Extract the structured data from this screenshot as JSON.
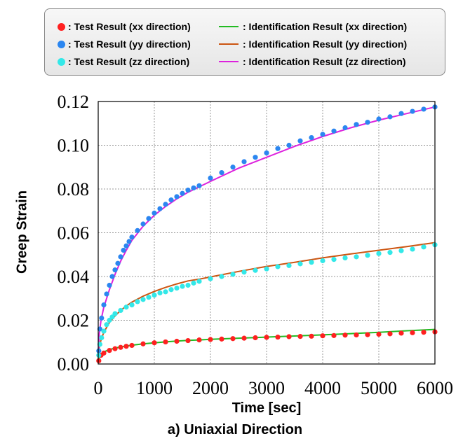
{
  "legend": {
    "items": [
      {
        "label": ": Test Result (xx direction)",
        "color": "#ff2020",
        "kind": "marker"
      },
      {
        "label": ": Test Result (yy direction)",
        "color": "#2b86f0",
        "kind": "marker"
      },
      {
        "label": ": Test Result (zz direction)",
        "color": "#33e8e8",
        "kind": "marker"
      },
      {
        "label": ": Identification Result (xx direction)",
        "color": "#22bb22",
        "kind": "line"
      },
      {
        "label": ": Identification Result (yy direction)",
        "color": "#cc5511",
        "kind": "line"
      },
      {
        "label": ": Identification Result (zz direction)",
        "color": "#dd22dd",
        "kind": "line"
      }
    ]
  },
  "caption": "a) Uniaxial Direction",
  "chart_data": {
    "type": "scatter",
    "xlabel": "Time [sec]",
    "ylabel": "Creep Strain",
    "xlim": [
      0,
      6000
    ],
    "ylim": [
      0,
      0.12
    ],
    "xticks": [
      "0",
      "1000",
      "2000",
      "3000",
      "4000",
      "5000",
      "6000"
    ],
    "yticks": [
      "0.00",
      "0.02",
      "0.04",
      "0.06",
      "0.08",
      "0.10",
      "0.12"
    ],
    "grid": true,
    "legend_position": "top",
    "series": [
      {
        "name": "Test Result (xx direction)",
        "kind": "markers",
        "color": "#ff2020",
        "x": [
          10,
          50,
          100,
          200,
          300,
          400,
          500,
          600,
          800,
          1000,
          1200,
          1400,
          1600,
          1800,
          2000,
          2200,
          2400,
          2600,
          2800,
          3000,
          3200,
          3400,
          3600,
          3800,
          4000,
          4200,
          4400,
          4600,
          4800,
          5000,
          5200,
          5400,
          5600,
          5800,
          6000
        ],
        "y": [
          0.0015,
          0.004,
          0.005,
          0.0062,
          0.007,
          0.0076,
          0.0081,
          0.0085,
          0.0092,
          0.0097,
          0.0101,
          0.0104,
          0.0107,
          0.011,
          0.0112,
          0.0114,
          0.0116,
          0.0118,
          0.012,
          0.0122,
          0.0123,
          0.0125,
          0.0126,
          0.0127,
          0.0129,
          0.013,
          0.0132,
          0.0133,
          0.0134,
          0.0136,
          0.0138,
          0.0141,
          0.0143,
          0.0145,
          0.0147
        ]
      },
      {
        "name": "Test Result (yy direction)",
        "kind": "markers",
        "color": "#2b86f0",
        "x": [
          10,
          30,
          60,
          100,
          150,
          200,
          250,
          300,
          350,
          400,
          450,
          500,
          550,
          600,
          700,
          800,
          900,
          1000,
          1100,
          1200,
          1300,
          1400,
          1500,
          1600,
          1700,
          1800,
          2000,
          2200,
          2400,
          2600,
          2800,
          3000,
          3200,
          3400,
          3600,
          3800,
          4000,
          4200,
          4400,
          4600,
          4800,
          5000,
          5200,
          5400,
          5600,
          5800,
          6000
        ],
        "y": [
          0.006,
          0.016,
          0.021,
          0.027,
          0.032,
          0.036,
          0.04,
          0.043,
          0.046,
          0.049,
          0.052,
          0.054,
          0.056,
          0.058,
          0.061,
          0.064,
          0.0665,
          0.069,
          0.071,
          0.073,
          0.075,
          0.0765,
          0.078,
          0.0795,
          0.0805,
          0.0815,
          0.085,
          0.0875,
          0.09,
          0.0925,
          0.0945,
          0.0965,
          0.0985,
          0.1,
          0.102,
          0.1035,
          0.105,
          0.1065,
          0.108,
          0.1095,
          0.1105,
          0.112,
          0.113,
          0.1145,
          0.1155,
          0.1165,
          0.1175
        ]
      },
      {
        "name": "Test Result (zz direction)",
        "kind": "markers",
        "color": "#33e8e8",
        "x": [
          10,
          30,
          60,
          100,
          150,
          200,
          250,
          300,
          400,
          500,
          600,
          700,
          800,
          900,
          1000,
          1100,
          1200,
          1300,
          1400,
          1500,
          1600,
          1700,
          1800,
          2000,
          2200,
          2400,
          2600,
          2800,
          3000,
          3200,
          3400,
          3600,
          3800,
          4000,
          4200,
          4400,
          4600,
          4800,
          5000,
          5200,
          5400,
          5600,
          5800,
          6000
        ],
        "y": [
          0.004,
          0.009,
          0.012,
          0.015,
          0.018,
          0.02,
          0.0215,
          0.023,
          0.0245,
          0.026,
          0.027,
          0.0285,
          0.0295,
          0.0305,
          0.0315,
          0.0325,
          0.033,
          0.034,
          0.0347,
          0.0355,
          0.036,
          0.037,
          0.0378,
          0.039,
          0.04,
          0.041,
          0.042,
          0.0428,
          0.0435,
          0.0445,
          0.045,
          0.0458,
          0.0465,
          0.0472,
          0.0478,
          0.0485,
          0.049,
          0.0497,
          0.0505,
          0.051,
          0.0518,
          0.0525,
          0.0535,
          0.0545
        ]
      },
      {
        "name": "Identification Result (xx direction)",
        "kind": "line",
        "color": "#22bb22",
        "x": [
          0,
          20,
          50,
          100,
          200,
          300,
          400,
          500,
          600,
          800,
          1000,
          1200,
          1400,
          1600,
          1800,
          2000,
          2500,
          3000,
          3500,
          4000,
          4500,
          5000,
          5500,
          6000
        ],
        "y": [
          0.001,
          0.003,
          0.0045,
          0.0055,
          0.0066,
          0.0073,
          0.0078,
          0.0082,
          0.0086,
          0.0092,
          0.0097,
          0.0101,
          0.0105,
          0.0108,
          0.011,
          0.0113,
          0.0118,
          0.0123,
          0.0128,
          0.0133,
          0.0139,
          0.0145,
          0.0152,
          0.0158
        ]
      },
      {
        "name": "Identification Result (yy direction)",
        "kind": "line",
        "color": "#cc5511",
        "x": [
          0,
          20,
          50,
          100,
          200,
          300,
          400,
          500,
          600,
          800,
          1000,
          1200,
          1400,
          1600,
          1800,
          2000,
          2500,
          3000,
          3500,
          4000,
          4500,
          5000,
          5500,
          6000
        ],
        "y": [
          0.003,
          0.008,
          0.011,
          0.0145,
          0.019,
          0.022,
          0.0245,
          0.0265,
          0.0283,
          0.031,
          0.0332,
          0.035,
          0.0366,
          0.038,
          0.0388,
          0.0398,
          0.0423,
          0.0446,
          0.0465,
          0.0485,
          0.0503,
          0.052,
          0.0537,
          0.0555
        ]
      },
      {
        "name": "Identification Result (zz direction)",
        "kind": "line",
        "color": "#dd22dd",
        "x": [
          0,
          20,
          50,
          100,
          200,
          300,
          400,
          500,
          600,
          800,
          1000,
          1200,
          1400,
          1600,
          1800,
          2000,
          2500,
          3000,
          3500,
          4000,
          4500,
          5000,
          5500,
          6000
        ],
        "y": [
          0.004,
          0.014,
          0.02,
          0.026,
          0.034,
          0.041,
          0.047,
          0.052,
          0.0565,
          0.063,
          0.068,
          0.072,
          0.0755,
          0.0785,
          0.081,
          0.0835,
          0.0895,
          0.0945,
          0.0995,
          0.104,
          0.108,
          0.1115,
          0.1145,
          0.1175
        ]
      }
    ]
  }
}
